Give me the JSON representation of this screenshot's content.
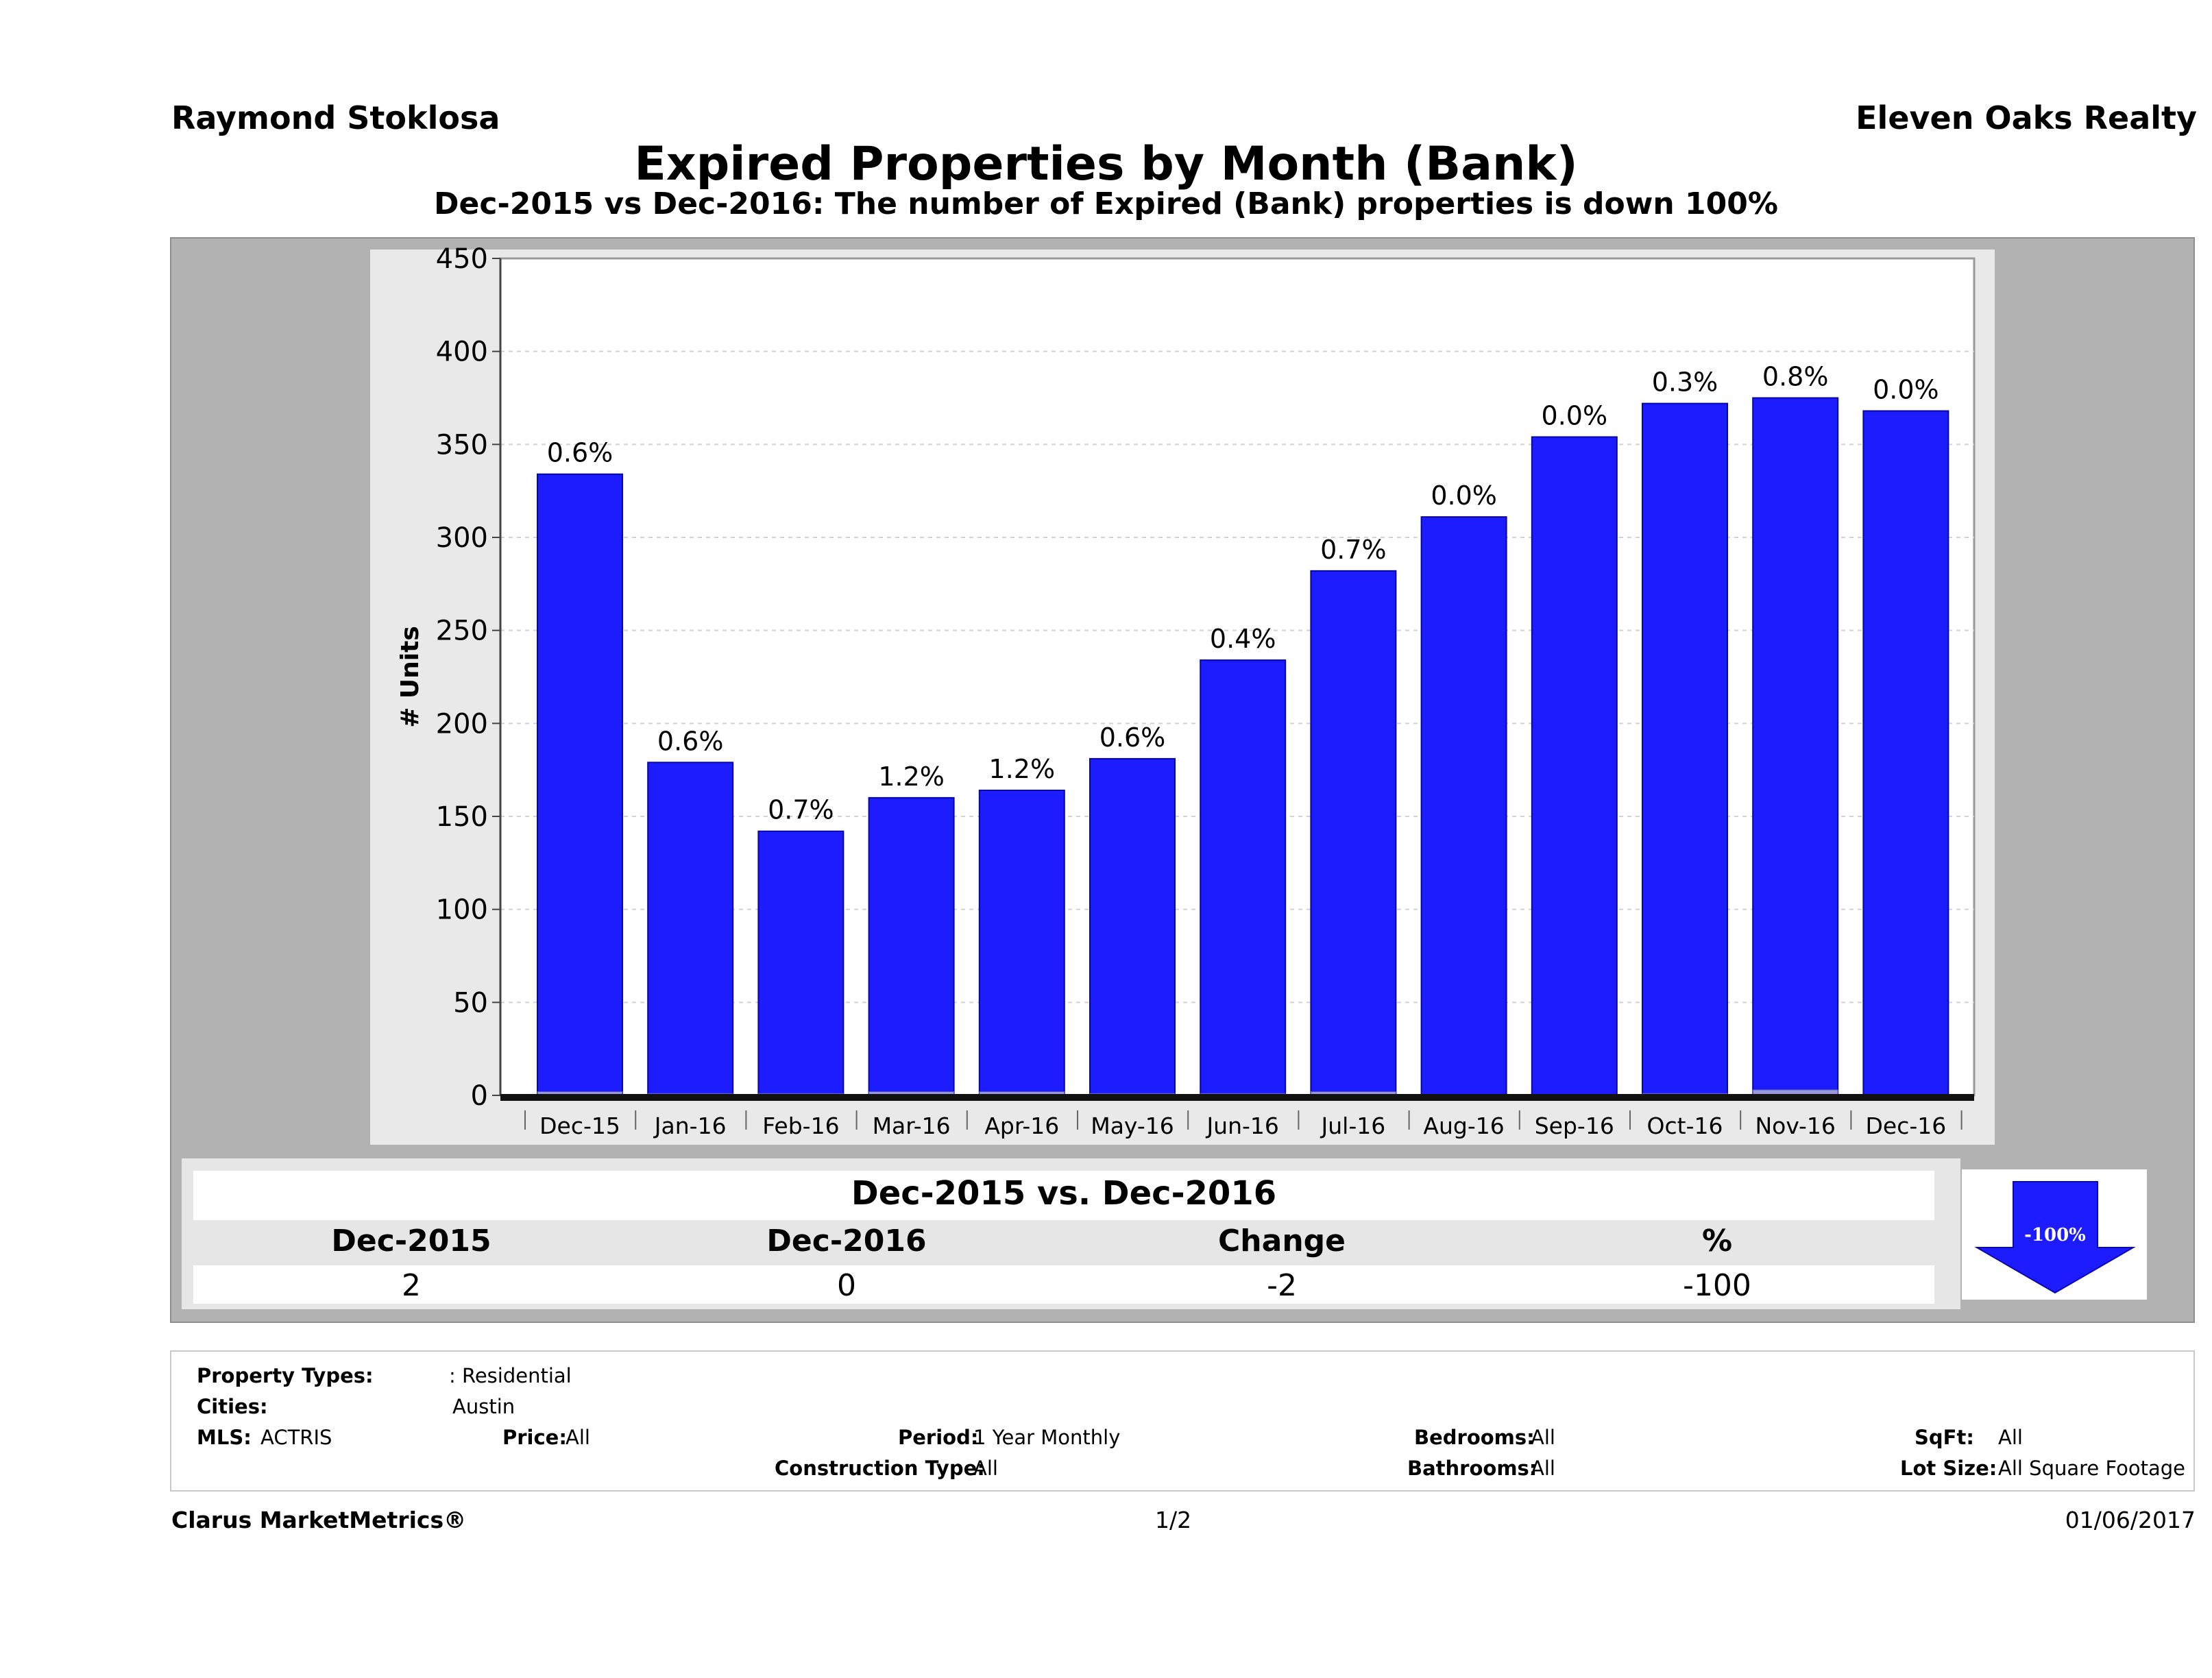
{
  "header": {
    "agent": "Raymond Stoklosa",
    "company": "Eleven Oaks Realty",
    "title": "Expired Properties by Month (Bank)",
    "subtitle": "Dec-2015 vs Dec-2016: The number of Expired (Bank)  properties is down 100%"
  },
  "colors": {
    "bar": "#1c1cff",
    "panel": "#b2b2b2",
    "arrow": "#1c1cff"
  },
  "chart_data": {
    "type": "bar",
    "title": "",
    "xlabel": "",
    "ylabel": "# Units",
    "ylim": [
      0,
      450
    ],
    "yticks": [
      0,
      50,
      100,
      150,
      200,
      250,
      300,
      350,
      400,
      450
    ],
    "grid": true,
    "categories": [
      "Dec-15",
      "Jan-16",
      "Feb-16",
      "Mar-16",
      "Apr-16",
      "May-16",
      "Jun-16",
      "Jul-16",
      "Aug-16",
      "Sep-16",
      "Oct-16",
      "Nov-16",
      "Dec-16"
    ],
    "values": [
      334,
      179,
      142,
      160,
      164,
      181,
      234,
      282,
      311,
      354,
      372,
      375,
      368
    ],
    "bank_values": [
      2,
      1,
      1,
      2,
      2,
      1,
      1,
      2,
      0,
      0,
      1,
      3,
      0
    ],
    "data_labels": [
      "0.6%",
      "0.6%",
      "0.7%",
      "1.2%",
      "1.2%",
      "0.6%",
      "0.4%",
      "0.7%",
      "0.0%",
      "0.0%",
      "0.3%",
      "0.8%",
      "0.0%"
    ]
  },
  "summary": {
    "title": "Dec-2015 vs. Dec-2016",
    "headers": [
      "Dec-2015",
      "Dec-2016",
      "Change",
      "%"
    ],
    "values": [
      "2",
      "0",
      "-2",
      "-100"
    ],
    "arrow_label": "-100%"
  },
  "criteria": {
    "property_types_label": "Property Types:",
    "property_types_value": ": Residential",
    "cities_label": "Cities:",
    "cities_value": "Austin",
    "mls_label": "MLS:",
    "mls_value": "ACTRIS",
    "price_label": "Price:",
    "price_value": "All",
    "period_label": "Period:",
    "period_value": "1 Year Monthly",
    "construction_label": "Construction Type:",
    "construction_value": "All",
    "bedrooms_label": "Bedrooms:",
    "bedrooms_value": "All",
    "bathrooms_label": "Bathrooms:",
    "bathrooms_value": "All",
    "sqft_label": "SqFt:",
    "sqft_value": "All",
    "lotsize_label": "Lot Size:",
    "lotsize_value": "All Square Footage"
  },
  "footer": {
    "brand": "Clarus MarketMetrics®",
    "page": "1/2",
    "date": "01/06/2017"
  }
}
